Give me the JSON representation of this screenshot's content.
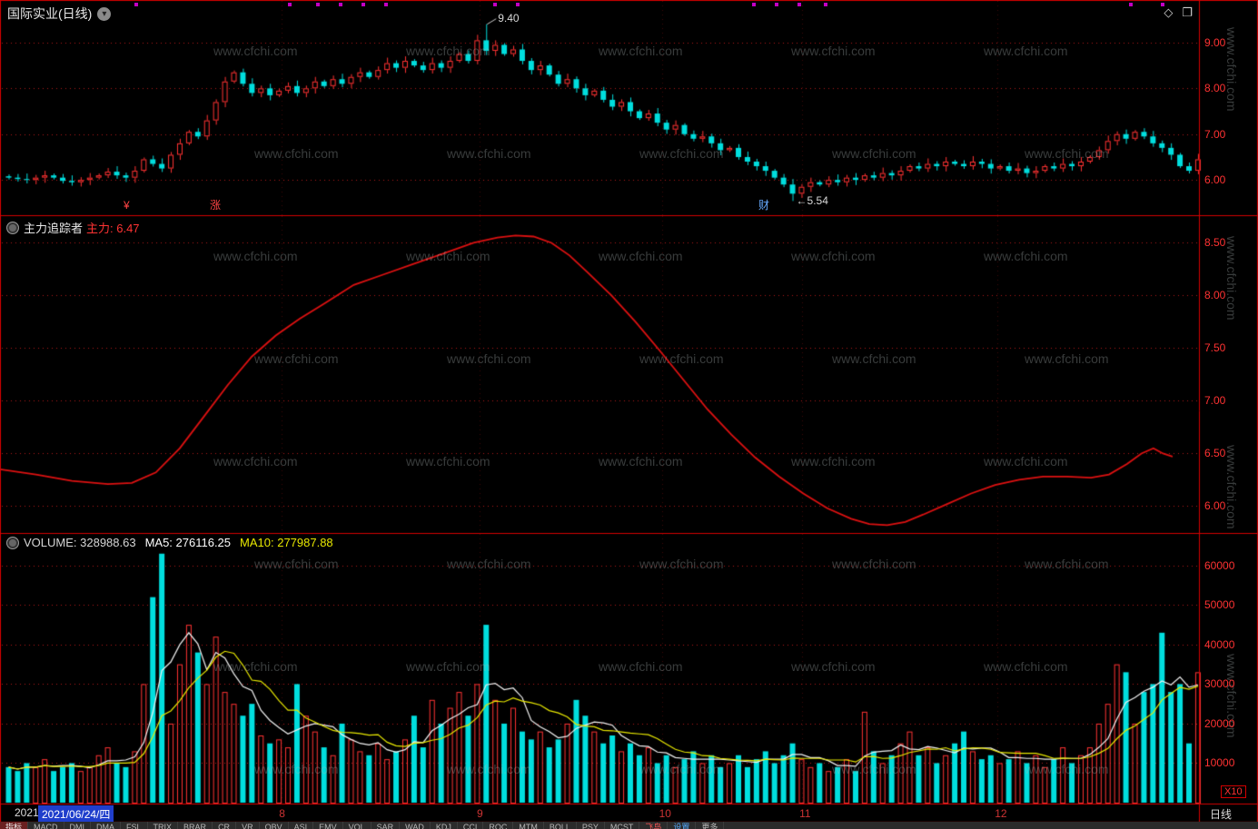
{
  "window": {
    "title": "国际实业(日线)",
    "top_right_icons": [
      "◇",
      "❐"
    ]
  },
  "watermark": {
    "text": "www.cfchi.com"
  },
  "colors": {
    "up": "#ff3232",
    "down": "#00dede",
    "border": "#d40000",
    "grid": "#c81e1e",
    "axis_text": "#ff3232",
    "ma5": "#f2f2f2",
    "ma10": "#e8e800",
    "tracker_line": "#dd1111",
    "date_highlight_bg": "#1f3ecc",
    "month_text": "#cc3333"
  },
  "panels": {
    "main": {
      "y_ticks": [
        "9.00",
        "8.00",
        "7.00",
        "6.00"
      ],
      "high_label": "9.40",
      "low_label": "←5.54",
      "event_markers": [
        {
          "x": 136,
          "text": "¥",
          "color": "#ff4444"
        },
        {
          "x": 231,
          "text": "涨",
          "color": "#ff4444"
        },
        {
          "x": 835,
          "text": "财",
          "color": "#66aaff"
        }
      ],
      "alert_dots_xf": [
        0.114,
        0.242,
        0.265,
        0.284,
        0.303,
        0.322,
        0.413,
        0.432,
        0.629,
        0.648,
        0.667,
        0.689,
        0.943,
        0.97
      ]
    },
    "tracker": {
      "title": "主力追踪者",
      "value_label": "主力: 6.47",
      "y_ticks": [
        "8.50",
        "8.00",
        "7.50",
        "7.00",
        "6.50",
        "6.00"
      ]
    },
    "volume": {
      "labels": {
        "volume": "VOLUME: 328988.63",
        "ma5": "MA5: 276116.25",
        "ma10": "MA10: 277987.88"
      },
      "y_ticks": [
        "60000",
        "50000",
        "40000",
        "30000",
        "20000",
        "10000"
      ],
      "unit": "X10"
    }
  },
  "chart_data": [
    {
      "type": "candlestick",
      "panel": "main",
      "title": "国际实业(日线)",
      "ylim": [
        5.23,
        9.91
      ],
      "y_tick_values": [
        9.0,
        8.0,
        7.0,
        6.0
      ],
      "first_open": 6.08,
      "closes": [
        6.05,
        6.02,
        6.0,
        6.05,
        6.1,
        6.05,
        5.98,
        5.95,
        6.0,
        6.05,
        6.1,
        6.18,
        6.1,
        6.05,
        6.2,
        6.45,
        6.35,
        6.25,
        6.55,
        6.8,
        7.05,
        6.95,
        7.3,
        7.7,
        8.15,
        8.35,
        8.1,
        7.9,
        8.0,
        7.85,
        7.95,
        8.05,
        7.9,
        8.0,
        8.15,
        8.05,
        8.2,
        8.1,
        8.25,
        8.35,
        8.25,
        8.4,
        8.55,
        8.45,
        8.6,
        8.5,
        8.4,
        8.55,
        8.45,
        8.6,
        8.75,
        8.6,
        9.05,
        8.82,
        8.95,
        8.75,
        8.85,
        8.6,
        8.4,
        8.5,
        8.3,
        8.1,
        8.2,
        8.0,
        7.85,
        7.95,
        7.75,
        7.6,
        7.7,
        7.5,
        7.35,
        7.45,
        7.25,
        7.1,
        7.2,
        7.0,
        6.9,
        6.95,
        6.8,
        6.65,
        6.7,
        6.5,
        6.4,
        6.3,
        6.2,
        6.05,
        5.9,
        5.7,
        5.85,
        5.95,
        5.9,
        6.0,
        5.95,
        6.05,
        6.0,
        6.1,
        6.05,
        6.15,
        6.1,
        6.2,
        6.3,
        6.25,
        6.35,
        6.3,
        6.4,
        6.35,
        6.3,
        6.4,
        6.35,
        6.25,
        6.3,
        6.2,
        6.25,
        6.15,
        6.2,
        6.3,
        6.25,
        6.35,
        6.3,
        6.4,
        6.5,
        6.65,
        6.85,
        7.0,
        6.9,
        7.05,
        6.95,
        6.8,
        6.7,
        6.55,
        6.3,
        6.2,
        6.45
      ],
      "high_point": {
        "index": 53,
        "value": 9.4
      },
      "low_point": {
        "index": 87,
        "value": 5.54
      }
    },
    {
      "type": "line",
      "panel": "tracker",
      "name": "主力",
      "last_value": 6.47,
      "ylim": [
        5.745,
        8.754
      ],
      "y_tick_values": [
        8.5,
        8.0,
        7.5,
        7.0,
        6.5,
        6.0
      ],
      "points": [
        [
          0.0,
          6.35
        ],
        [
          0.03,
          6.3
        ],
        [
          0.06,
          6.24
        ],
        [
          0.09,
          6.21
        ],
        [
          0.11,
          6.22
        ],
        [
          0.13,
          6.32
        ],
        [
          0.15,
          6.55
        ],
        [
          0.17,
          6.85
        ],
        [
          0.19,
          7.15
        ],
        [
          0.21,
          7.42
        ],
        [
          0.23,
          7.62
        ],
        [
          0.25,
          7.78
        ],
        [
          0.27,
          7.92
        ],
        [
          0.295,
          8.1
        ],
        [
          0.32,
          8.2
        ],
        [
          0.345,
          8.3
        ],
        [
          0.37,
          8.4
        ],
        [
          0.395,
          8.5
        ],
        [
          0.415,
          8.55
        ],
        [
          0.43,
          8.57
        ],
        [
          0.445,
          8.56
        ],
        [
          0.46,
          8.5
        ],
        [
          0.475,
          8.38
        ],
        [
          0.49,
          8.22
        ],
        [
          0.51,
          8.0
        ],
        [
          0.53,
          7.75
        ],
        [
          0.55,
          7.48
        ],
        [
          0.57,
          7.2
        ],
        [
          0.59,
          6.92
        ],
        [
          0.61,
          6.68
        ],
        [
          0.63,
          6.46
        ],
        [
          0.65,
          6.28
        ],
        [
          0.67,
          6.12
        ],
        [
          0.69,
          5.98
        ],
        [
          0.71,
          5.88
        ],
        [
          0.725,
          5.83
        ],
        [
          0.74,
          5.82
        ],
        [
          0.755,
          5.85
        ],
        [
          0.77,
          5.92
        ],
        [
          0.79,
          6.02
        ],
        [
          0.81,
          6.12
        ],
        [
          0.83,
          6.2
        ],
        [
          0.85,
          6.25
        ],
        [
          0.87,
          6.28
        ],
        [
          0.89,
          6.28
        ],
        [
          0.91,
          6.27
        ],
        [
          0.925,
          6.3
        ],
        [
          0.94,
          6.4
        ],
        [
          0.952,
          6.5
        ],
        [
          0.962,
          6.55
        ],
        [
          0.97,
          6.5
        ],
        [
          0.978,
          6.47
        ]
      ]
    },
    {
      "type": "bar",
      "panel": "volume",
      "name": "VOLUME",
      "scale_unit": "X10",
      "ylim": [
        0,
        68000
      ],
      "y_tick_values": [
        60000,
        50000,
        40000,
        30000,
        20000,
        10000
      ],
      "ma_windows": [
        5,
        10
      ],
      "values": [
        9000,
        8000,
        10000,
        9000,
        11000,
        8000,
        9000,
        10000,
        8000,
        9000,
        12000,
        14000,
        10000,
        9000,
        13000,
        30000,
        52000,
        63000,
        20000,
        35000,
        45000,
        38000,
        30000,
        42000,
        28000,
        25000,
        22000,
        25000,
        17000,
        15000,
        16000,
        14000,
        30000,
        22000,
        18000,
        14000,
        12000,
        20000,
        16000,
        13000,
        12000,
        15000,
        11000,
        13000,
        16000,
        22000,
        14000,
        26000,
        20000,
        24000,
        28000,
        22000,
        30000,
        45000,
        26000,
        20000,
        24000,
        18000,
        16000,
        18000,
        14000,
        16000,
        20000,
        26000,
        22000,
        18000,
        15000,
        17000,
        13000,
        15000,
        12000,
        14000,
        10000,
        12000,
        9000,
        11000,
        13000,
        10000,
        12000,
        9000,
        10000,
        12000,
        9000,
        11000,
        13000,
        10000,
        12000,
        15000,
        11000,
        9000,
        10000,
        8000,
        9000,
        11000,
        8000,
        23000,
        13000,
        10000,
        12000,
        15000,
        18000,
        12000,
        14000,
        10000,
        12000,
        15000,
        18000,
        13000,
        11000,
        12000,
        10000,
        11000,
        13000,
        10000,
        12000,
        9000,
        11000,
        14000,
        10000,
        12000,
        14000,
        20000,
        25000,
        35000,
        33000,
        20000,
        28000,
        30000,
        43000,
        28000,
        30000,
        15000,
        33000
      ]
    }
  ],
  "timeline": {
    "year": "2021",
    "date": "2021/06/24/四",
    "months": [
      {
        "label": "8",
        "xf": 0.235
      },
      {
        "label": "9",
        "xf": 0.4
      },
      {
        "label": "10",
        "xf": 0.552
      },
      {
        "label": "11",
        "xf": 0.669
      },
      {
        "label": "12",
        "xf": 0.832
      }
    ],
    "period": "日线"
  },
  "toolbar": {
    "items": [
      "指标",
      "MACD",
      "DMI",
      "DMA",
      "FSL",
      "TRIX",
      "BRAR",
      "CR",
      "VR",
      "OBV",
      "ASI",
      "EMV",
      "VOL",
      "SAR",
      "WAD",
      "KDJ",
      "CCI",
      "ROC",
      "MTM",
      "BOLL",
      "PSY",
      "MCST",
      "飞鸟",
      "设置",
      "更多"
    ]
  }
}
